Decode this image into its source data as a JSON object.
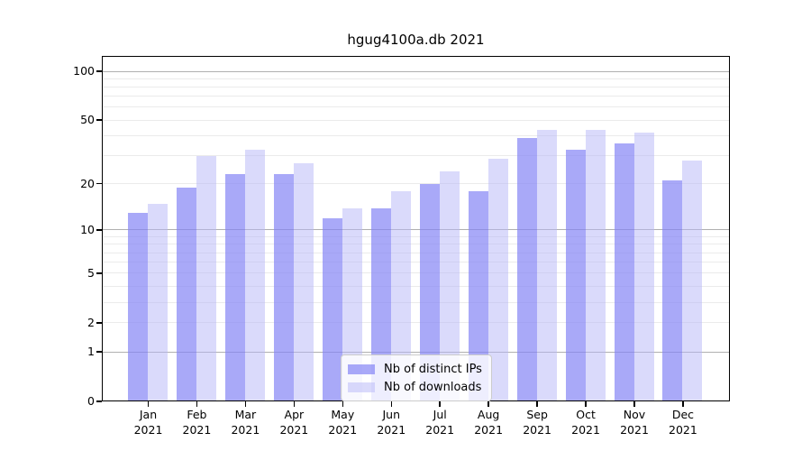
{
  "chart_data": {
    "type": "bar",
    "title": "hgug4100a.db 2021",
    "categories": [
      "Jan",
      "Feb",
      "Mar",
      "Apr",
      "May",
      "Jun",
      "Jul",
      "Aug",
      "Sep",
      "Oct",
      "Nov",
      "Dec"
    ],
    "year_label": "2021",
    "series": [
      {
        "name": "Nb of distinct IPs",
        "color_hex": "#8484f5",
        "alpha": 0.7,
        "values": [
          13,
          19,
          23,
          23,
          12,
          14,
          20,
          18,
          39,
          33,
          36,
          21
        ]
      },
      {
        "name": "Nb of downloads",
        "color_hex": "#b5b5f7",
        "alpha": 0.5,
        "values": [
          15,
          30,
          33,
          27,
          14,
          18,
          24,
          29,
          44,
          44,
          42,
          28
        ]
      }
    ],
    "xlabel": "",
    "ylabel": "",
    "yscale": "log10(1+y)",
    "ylim": [
      0,
      125
    ],
    "yticks": [
      0,
      1,
      2,
      5,
      10,
      20,
      50,
      100
    ],
    "grid": {
      "on": true,
      "major_lines": [
        1,
        10,
        100
      ],
      "minor_lines": [
        2,
        3,
        4,
        5,
        6,
        7,
        8,
        9,
        20,
        30,
        40,
        50,
        60,
        70,
        80,
        90
      ]
    },
    "legend_position": "lower-center"
  }
}
